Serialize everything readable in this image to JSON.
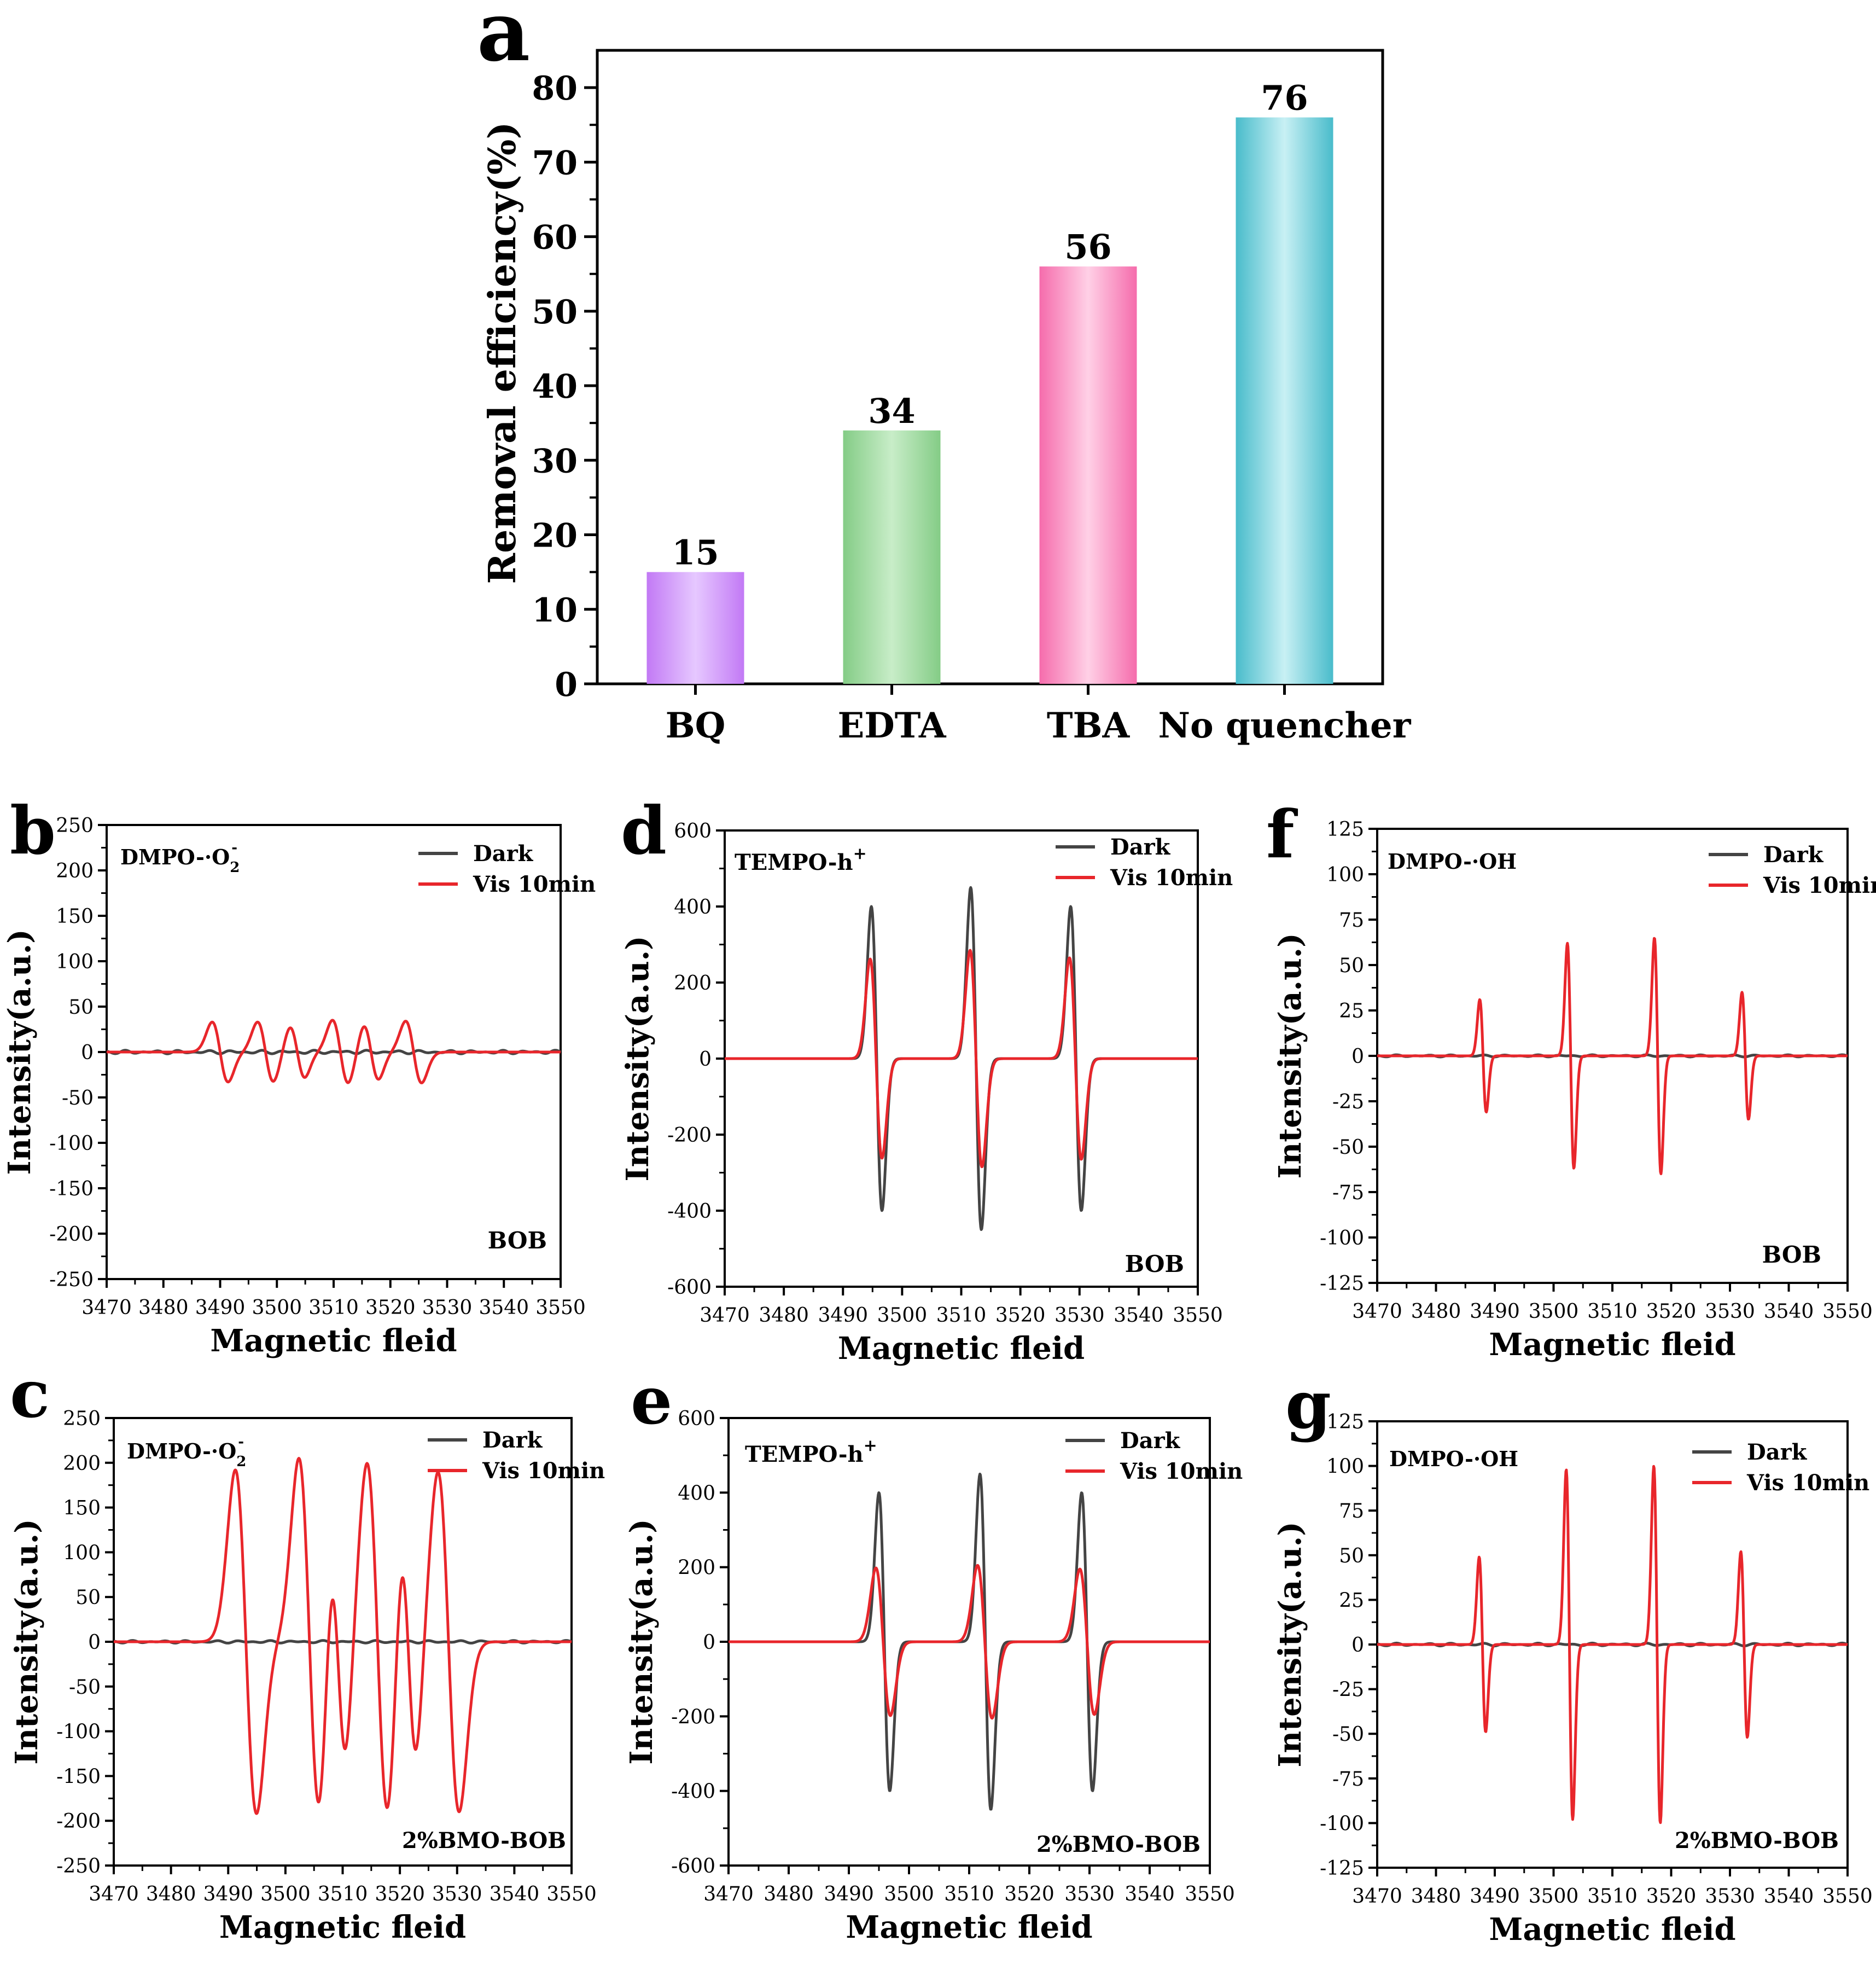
{
  "figure": {
    "bar_panel": {
      "letter": "a",
      "title": "",
      "ylabel": "Removal efficiency(%)",
      "yticks": [
        "0",
        "10",
        "20",
        "30",
        "40",
        "50",
        "60",
        "70",
        "80"
      ],
      "ylim": [
        0,
        85
      ],
      "bars": [
        {
          "category": "BQ",
          "value": 15,
          "label": "15",
          "color_light": "#e6c8ff",
          "color_dark": "#c279f5"
        },
        {
          "category": "EDTA",
          "value": 34,
          "label": "34",
          "color_light": "#c8edc8",
          "color_dark": "#84cc86"
        },
        {
          "category": "TBA",
          "value": 56,
          "label": "56",
          "color_light": "#ffd0e6",
          "color_dark": "#f56cac"
        },
        {
          "category": "No quencher",
          "value": 76,
          "label": "76",
          "color_light": "#c8f0f4",
          "color_dark": "#49bccb"
        }
      ]
    },
    "epr_panels": [
      {
        "id": "b",
        "letter": "b",
        "probe_main": "DMPO-·O",
        "probe_sub": "2",
        "probe_sup": "-",
        "sample": "BOB",
        "yticks": [
          "250",
          "200",
          "150",
          "100",
          "50",
          "0",
          "-50",
          "-100",
          "-150",
          "-200",
          "-250"
        ]
      },
      {
        "id": "c",
        "letter": "c",
        "probe_main": "DMPO-·O",
        "probe_sub": "2",
        "probe_sup": "-",
        "sample": "2%BMO-BOB",
        "yticks": [
          "250",
          "200",
          "150",
          "100",
          "50",
          "0",
          "-50",
          "-100",
          "-150",
          "-200",
          "-250"
        ]
      },
      {
        "id": "d",
        "letter": "d",
        "probe_main": "TEMPO-h",
        "probe_sub": "",
        "probe_sup": "+",
        "sample": "BOB",
        "yticks": [
          "600",
          "400",
          "200",
          "0",
          "-200",
          "-400",
          "-600"
        ]
      },
      {
        "id": "e",
        "letter": "e",
        "probe_main": "TEMPO-h",
        "probe_sub": "",
        "probe_sup": "+",
        "sample": "2%BMO-BOB",
        "yticks": [
          "600",
          "400",
          "200",
          "0",
          "-200",
          "-400",
          "-600"
        ]
      },
      {
        "id": "f",
        "letter": "f",
        "probe_main": "DMPO-·OH",
        "probe_sub": "",
        "probe_sup": "",
        "sample": "BOB",
        "yticks": [
          "125",
          "100",
          "75",
          "50",
          "25",
          "0",
          "-25",
          "-50",
          "-75",
          "-100",
          "-125"
        ]
      },
      {
        "id": "g",
        "letter": "g",
        "probe_main": "DMPO-·OH",
        "probe_sub": "",
        "probe_sup": "",
        "sample": "2%BMO-BOB",
        "yticks": [
          "125",
          "100",
          "75",
          "50",
          "25",
          "0",
          "-25",
          "-50",
          "-75",
          "-100",
          "-125"
        ]
      }
    ],
    "epr_common": {
      "xlabel": "Magnetic fleid",
      "ylabel": "Intensity(a.u.)",
      "xticks": [
        "3470",
        "3480",
        "3490",
        "3500",
        "3510",
        "3520",
        "3530",
        "3540",
        "3550"
      ],
      "legend": [
        {
          "name": "Dark",
          "color": "#444444"
        },
        {
          "name": "Vis 10min",
          "color": "#e8262b"
        }
      ]
    }
  },
  "chart_data": [
    {
      "type": "bar",
      "panel": "a",
      "categories": [
        "BQ",
        "EDTA",
        "TBA",
        "No quencher"
      ],
      "values": [
        15,
        34,
        56,
        76
      ],
      "title": "",
      "xlabel": "",
      "ylabel": "Removal efficiency(%)",
      "ylim": [
        0,
        85
      ]
    },
    {
      "type": "line",
      "panel": "b",
      "xlabel": "Magnetic fleid",
      "ylabel": "Intensity(a.u.)",
      "xlim": [
        3470,
        3550
      ],
      "ylim": [
        -250,
        250
      ],
      "series": [
        {
          "name": "Dark",
          "kind": "flat",
          "amp": 2
        },
        {
          "name": "Vis 10min",
          "kind": "dmpo_o2",
          "peaks": [
            {
              "c": 3490.0,
              "a": 33,
              "w": 1.4
            },
            {
              "c": 3498.0,
              "a": 33,
              "w": 1.4
            },
            {
              "c": 3503.6,
              "a": 28,
              "w": 1.3
            },
            {
              "c": 3511.2,
              "a": 35,
              "w": 1.4
            },
            {
              "c": 3516.6,
              "a": 30,
              "w": 1.3
            },
            {
              "c": 3524.1,
              "a": 34,
              "w": 1.4
            }
          ]
        }
      ]
    },
    {
      "type": "line",
      "panel": "c",
      "xlabel": "Magnetic fleid",
      "ylabel": "Intensity(a.u.)",
      "xlim": [
        3470,
        3550
      ],
      "ylim": [
        -250,
        250
      ],
      "series": [
        {
          "name": "Dark",
          "kind": "flat",
          "amp": 1.5
        },
        {
          "name": "Vis 10min",
          "kind": "dmpo_o2",
          "peaks": [
            {
              "c": 3493.1,
              "a": 192,
              "w": 1.85
            },
            {
              "c": 3504.2,
              "a": 205,
              "w": 1.85
            },
            {
              "c": 3509.2,
              "a": 126,
              "w": 1.35
            },
            {
              "c": 3516.1,
              "a": 200,
              "w": 1.85
            },
            {
              "c": 3521.5,
              "a": 127,
              "w": 1.35
            },
            {
              "c": 3528.5,
              "a": 190,
              "w": 1.85
            }
          ]
        }
      ]
    },
    {
      "type": "line",
      "panel": "d",
      "xlabel": "Magnetic fleid",
      "ylabel": "Intensity(a.u.)",
      "xlim": [
        3470,
        3550
      ],
      "ylim": [
        -600,
        600
      ],
      "series": [
        {
          "name": "Dark",
          "kind": "tempo",
          "peaks": [
            {
              "c": 3495.7,
              "a": 400,
              "w": 0.9
            },
            {
              "c": 3512.5,
              "a": 450,
              "w": 0.9
            },
            {
              "c": 3529.4,
              "a": 400,
              "w": 0.9
            }
          ]
        },
        {
          "name": "Vis 10min",
          "kind": "tempo",
          "peaks": [
            {
              "c": 3495.6,
              "a": 262,
              "w": 1.0
            },
            {
              "c": 3512.5,
              "a": 285,
              "w": 1.0
            },
            {
              "c": 3529.3,
              "a": 265,
              "w": 1.0
            }
          ]
        }
      ]
    },
    {
      "type": "line",
      "panel": "e",
      "xlabel": "Magnetic fleid",
      "ylabel": "Intensity(a.u.)",
      "xlim": [
        3470,
        3550
      ],
      "ylim": [
        -600,
        600
      ],
      "series": [
        {
          "name": "Dark",
          "kind": "tempo",
          "peaks": [
            {
              "c": 3495.9,
              "a": 400,
              "w": 0.9
            },
            {
              "c": 3512.7,
              "a": 450,
              "w": 0.9
            },
            {
              "c": 3529.6,
              "a": 400,
              "w": 0.9
            }
          ]
        },
        {
          "name": "Vis 10min",
          "kind": "tempo",
          "peaks": [
            {
              "c": 3495.7,
              "a": 198,
              "w": 1.2
            },
            {
              "c": 3512.6,
              "a": 205,
              "w": 1.2
            },
            {
              "c": 3529.6,
              "a": 195,
              "w": 1.2
            }
          ]
        }
      ]
    },
    {
      "type": "line",
      "panel": "f",
      "xlabel": "Magnetic fleid",
      "ylabel": "Intensity(a.u.)",
      "xlim": [
        3470,
        3550
      ],
      "ylim": [
        -125,
        125
      ],
      "series": [
        {
          "name": "Dark",
          "kind": "flat",
          "amp": 0.6
        },
        {
          "name": "Vis 10min",
          "kind": "dmpo_oh",
          "peaks": [
            {
              "c": 3488.0,
              "a": 31,
              "w": 0.55
            },
            {
              "c": 3502.9,
              "a": 62,
              "w": 0.55
            },
            {
              "c": 3517.7,
              "a": 65,
              "w": 0.55
            },
            {
              "c": 3532.6,
              "a": 35,
              "w": 0.55
            }
          ]
        }
      ]
    },
    {
      "type": "line",
      "panel": "g",
      "xlabel": "Magnetic fleid",
      "ylabel": "Intensity(a.u.)",
      "xlim": [
        3470,
        3550
      ],
      "ylim": [
        -125,
        125
      ],
      "series": [
        {
          "name": "Dark",
          "kind": "flat",
          "amp": 0.8
        },
        {
          "name": "Vis 10min",
          "kind": "dmpo_oh",
          "peaks": [
            {
              "c": 3487.9,
              "a": 49,
              "w": 0.55
            },
            {
              "c": 3502.7,
              "a": 98,
              "w": 0.55
            },
            {
              "c": 3517.6,
              "a": 100,
              "w": 0.55
            },
            {
              "c": 3532.4,
              "a": 52,
              "w": 0.55
            }
          ]
        }
      ]
    }
  ]
}
